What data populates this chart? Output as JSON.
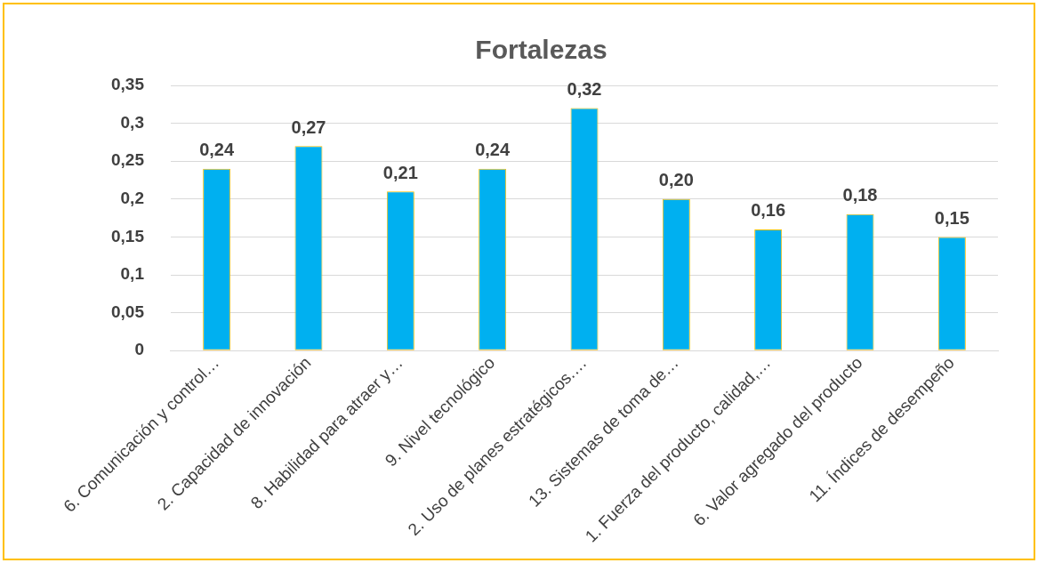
{
  "chart_data": {
    "type": "bar",
    "title": "Fortalezas",
    "categories": [
      "6. Comunicación y control…",
      "2. Capacidad de innovación",
      "8. Habilidad para atraer y…",
      "9. Nivel tecnológico",
      "2. Uso de planes estratégicos.…",
      "13. Sistemas de toma de…",
      "1. Fuerza del producto, calidad,…",
      "6. Valor agregado del producto",
      "11. Índices de desempeño"
    ],
    "values": [
      0.24,
      0.27,
      0.21,
      0.24,
      0.32,
      0.2,
      0.16,
      0.18,
      0.15
    ],
    "value_labels": [
      "0,24",
      "0,27",
      "0,21",
      "0,24",
      "0,32",
      "0,20",
      "0,16",
      "0,18",
      "0,15"
    ],
    "color": "#00b0f0",
    "ylim": [
      0,
      0.35
    ],
    "yticks": [
      {
        "value": 0,
        "label": "0"
      },
      {
        "value": 0.05,
        "label": "0,05"
      },
      {
        "value": 0.1,
        "label": "0,1"
      },
      {
        "value": 0.15,
        "label": "0,15"
      },
      {
        "value": 0.2,
        "label": "0,2"
      },
      {
        "value": 0.25,
        "label": "0,25"
      },
      {
        "value": 0.3,
        "label": "0,3"
      },
      {
        "value": 0.35,
        "label": "0,35"
      }
    ],
    "grid": "y",
    "legend": false
  }
}
